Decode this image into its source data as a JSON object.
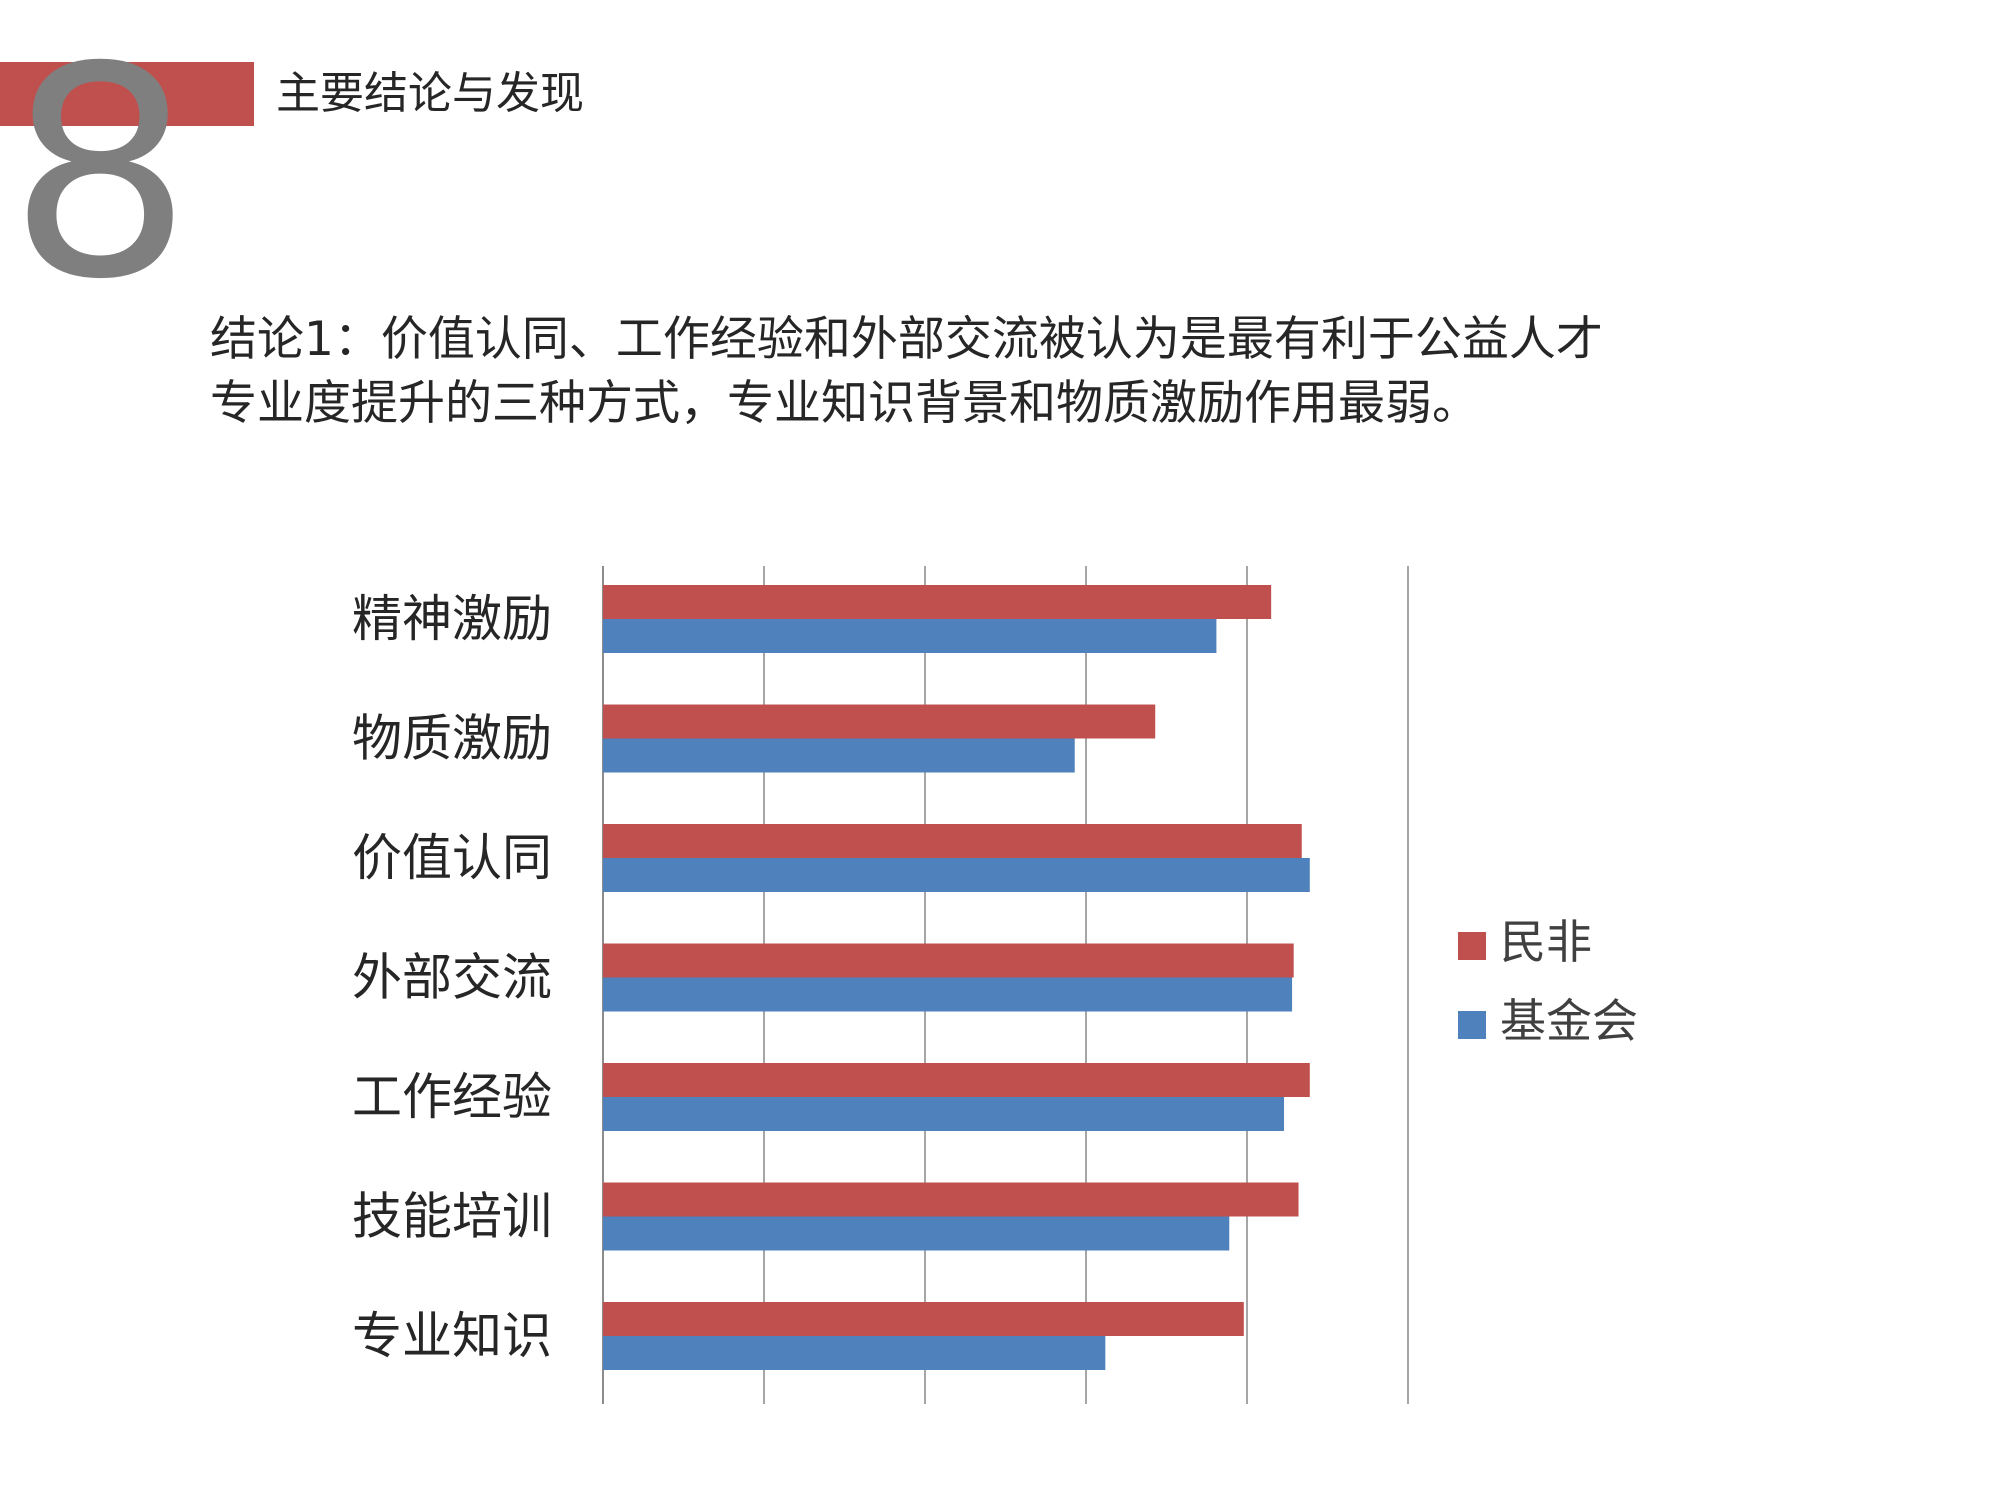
{
  "header": {
    "number": "8",
    "title": "主要结论与发现"
  },
  "conclusion": {
    "line1": "结论1：价值认同、工作经验和外部交流被认为是最有利于公益人才",
    "line2": "专业度提升的三种方式，专业知识背景和物质激励作用最弱。"
  },
  "chart_data": {
    "type": "bar",
    "orientation": "horizontal",
    "categories": [
      "精神激励",
      "物质激励",
      "价值认同",
      "外部交流",
      "工作经验",
      "技能培训",
      "专业知识"
    ],
    "series": [
      {
        "name": "民非",
        "color": "#c0504d",
        "values": [
          4.15,
          3.43,
          4.34,
          4.29,
          4.39,
          4.32,
          3.98
        ]
      },
      {
        "name": "基金会",
        "color": "#4f81bd",
        "values": [
          3.81,
          2.93,
          4.39,
          4.28,
          4.23,
          3.89,
          3.12
        ]
      }
    ],
    "xlim": [
      0,
      5
    ],
    "grid": true,
    "legend_position": "right",
    "tick_labels_shown": false
  }
}
